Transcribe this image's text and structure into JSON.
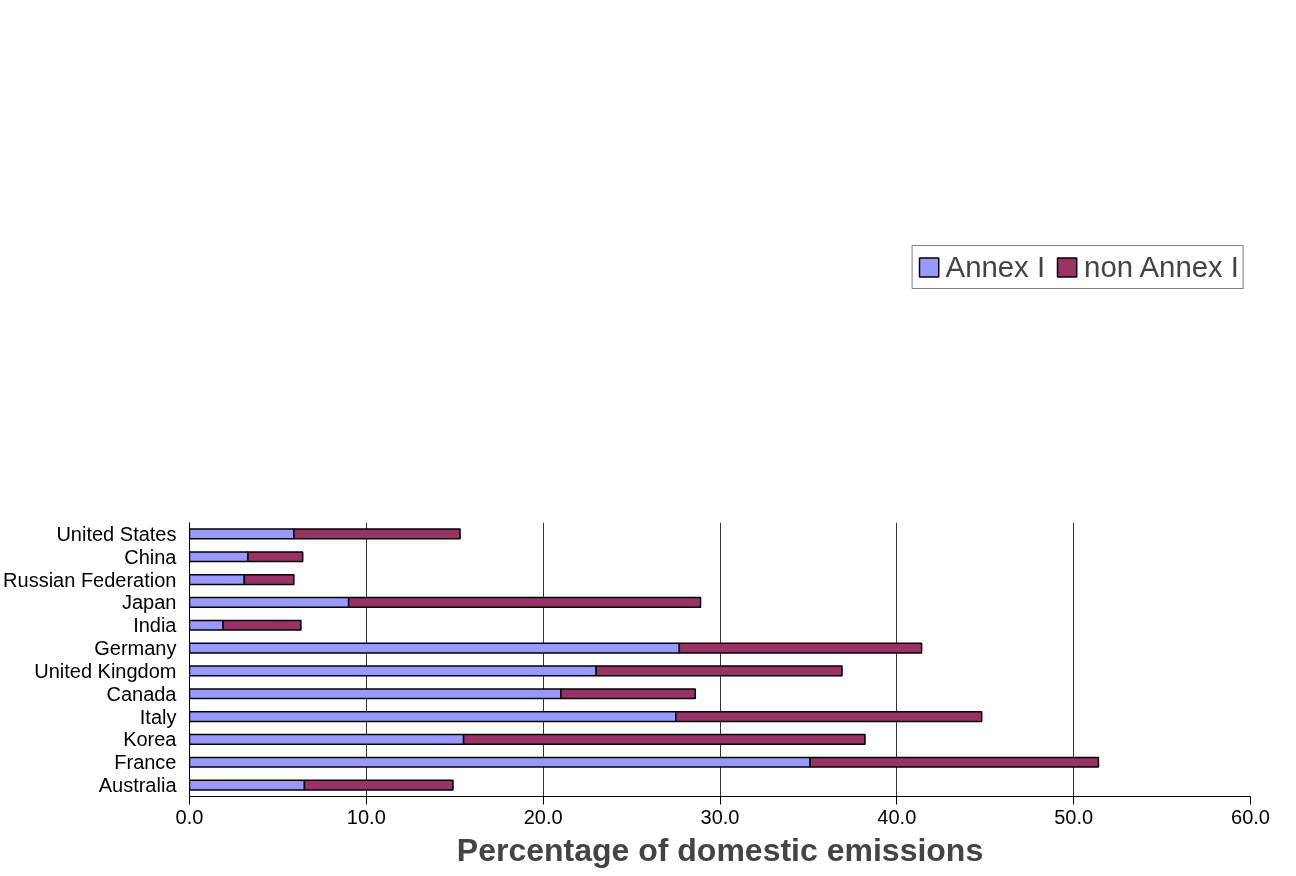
{
  "chart_data": {
    "type": "bar",
    "orientation": "horizontal",
    "stacked": true,
    "categories": [
      "United States",
      "China",
      "Russian Federation",
      "Japan",
      "India",
      "Germany",
      "United Kingdom",
      "Canada",
      "Italy",
      "Korea",
      "France",
      "Australia"
    ],
    "series": [
      {
        "name": "Annex I",
        "color": "#9999ff",
        "values": [
          5.9,
          3.3,
          3.1,
          9.0,
          1.9,
          27.7,
          23.0,
          21.0,
          27.5,
          15.5,
          35.1,
          6.5
        ]
      },
      {
        "name": "non Annex I",
        "color": "#993366",
        "values": [
          9.4,
          3.1,
          2.8,
          19.9,
          4.4,
          13.7,
          13.9,
          7.6,
          17.3,
          22.7,
          16.3,
          8.4
        ]
      }
    ],
    "xlabel": "Percentage of domestic emissions",
    "xlim": [
      0,
      60
    ],
    "xticks": [
      {
        "value": 0,
        "label": "0.0"
      },
      {
        "value": 10,
        "label": "10.0"
      },
      {
        "value": 20,
        "label": "20.0"
      },
      {
        "value": 30,
        "label": "30.0"
      },
      {
        "value": 40,
        "label": "40.0"
      },
      {
        "value": 50,
        "label": "50.0"
      },
      {
        "value": 60,
        "label": "60.0"
      }
    ],
    "grid": "x",
    "legend": "top"
  }
}
